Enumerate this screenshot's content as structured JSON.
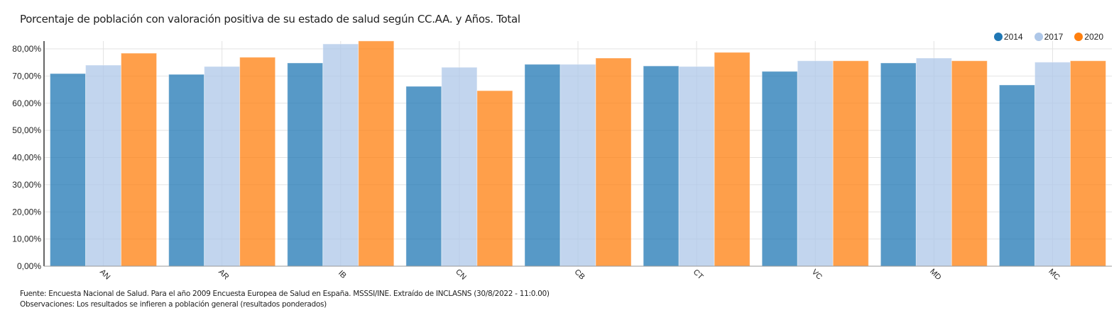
{
  "chart_data": {
    "type": "bar",
    "title": "Porcentaje de población con valoración positiva de su estado de salud según CC.AA. y Años. Total",
    "xlabel": "",
    "ylabel": "",
    "ylim": [
      0,
      80
    ],
    "y_ticks": [
      "0,00%",
      "10,00%",
      "20,00%",
      "30,00%",
      "40,00%",
      "50,00%",
      "60,00%",
      "70,00%",
      "80,00%"
    ],
    "y_tick_values": [
      0,
      10,
      20,
      30,
      40,
      50,
      60,
      70,
      80
    ],
    "grid": true,
    "legend_position": "top-right",
    "categories": [
      "AN",
      "AR",
      "IB",
      "CN",
      "CB",
      "CT",
      "VC",
      "MD",
      "MC"
    ],
    "series": [
      {
        "name": "2014",
        "color": "#1f77b4",
        "values": [
          70.9,
          70.6,
          74.8,
          66.2,
          74.3,
          73.7,
          71.7,
          74.8,
          66.7
        ]
      },
      {
        "name": "2017",
        "color": "#aec7e8",
        "values": [
          74.0,
          73.5,
          81.8,
          73.2,
          74.3,
          73.5,
          75.6,
          76.6,
          75.1
        ]
      },
      {
        "name": "2020",
        "color": "#ff7f0e",
        "values": [
          78.4,
          76.9,
          82.9,
          64.6,
          76.6,
          78.7,
          75.6,
          75.6,
          75.6
        ]
      }
    ]
  },
  "footer": {
    "source": "Fuente: Encuesta Nacional de Salud. Para el año 2009 Encuesta Europea de Salud en España. MSSSI/INE. Extraído de INCLASNS (30/8/2022 - 11:0.00)",
    "notes": "Observaciones: Los resultados se infieren a población general (resultados ponderados)"
  }
}
